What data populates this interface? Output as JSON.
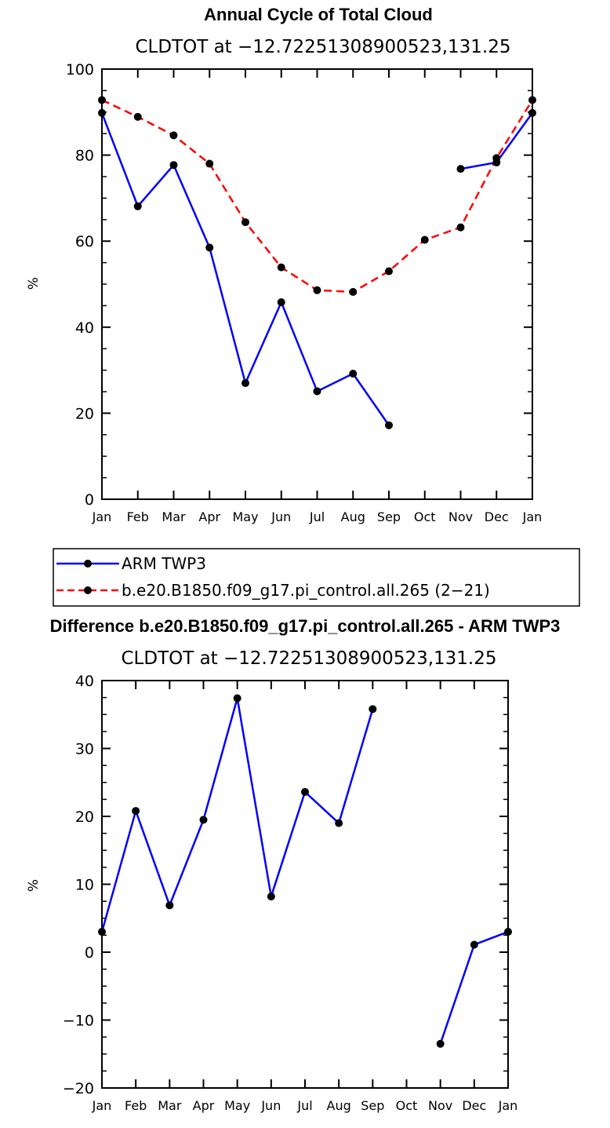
{
  "chart_data": [
    {
      "type": "line",
      "title": "Annual Cycle of Total Cloud",
      "subtitle": "CLDTOT at −12.72251308900523,131.25",
      "xlabel": "",
      "ylabel": "%",
      "ylim": [
        0,
        100
      ],
      "yticks": [
        "0",
        "20",
        "40",
        "60",
        "80",
        "100"
      ],
      "categories": [
        "Jan",
        "Feb",
        "Mar",
        "Apr",
        "May",
        "Jun",
        "Jul",
        "Aug",
        "Sep",
        "Oct",
        "Nov",
        "Dec",
        "Jan"
      ],
      "series": [
        {
          "name": "ARM TWP3",
          "color": "#0000ff",
          "dash": "solid",
          "values": [
            89.8,
            68.1,
            77.7,
            58.5,
            27.0,
            45.8,
            25.1,
            29.2,
            17.2,
            null,
            76.8,
            78.3,
            89.8
          ]
        },
        {
          "name": "b.e20.B1850.f09_g17.pi_control.all.265 (2−21)",
          "color": "#ff0000",
          "dash": "dashed",
          "values": [
            92.8,
            88.9,
            84.6,
            78.0,
            64.4,
            53.9,
            48.6,
            48.2,
            53.0,
            60.3,
            63.2,
            79.3,
            92.8
          ]
        }
      ],
      "legend": "below"
    },
    {
      "type": "line",
      "title": "Difference b.e20.B1850.f09_g17.pi_control.all.265 - ARM TWP3",
      "subtitle": "CLDTOT at −12.72251308900523,131.25",
      "xlabel": "",
      "ylabel": "%",
      "ylim": [
        -20,
        40
      ],
      "yticks": [
        "−20",
        "−10",
        "0",
        "10",
        "20",
        "30",
        "40"
      ],
      "categories": [
        "Jan",
        "Feb",
        "Mar",
        "Apr",
        "May",
        "Jun",
        "Jul",
        "Aug",
        "Sep",
        "Oct",
        "Nov",
        "Dec",
        "Jan"
      ],
      "series": [
        {
          "color": "#0000ff",
          "dash": "solid",
          "values": [
            3.0,
            20.8,
            6.9,
            19.5,
            37.4,
            8.2,
            23.6,
            19.0,
            35.8,
            null,
            -13.5,
            1.1,
            3.0
          ]
        }
      ]
    }
  ]
}
